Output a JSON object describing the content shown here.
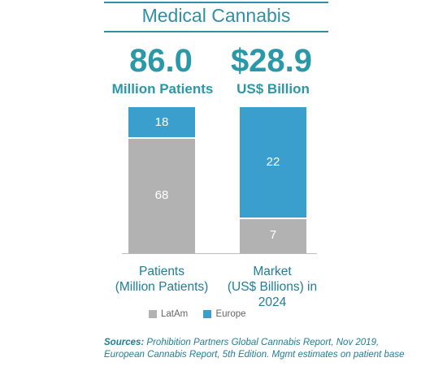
{
  "title": "Medical Cannabis",
  "stats": [
    {
      "value": "86.0",
      "unit": "Million Patients"
    },
    {
      "value": "$28.9",
      "unit": "US$ Billion"
    }
  ],
  "chart_data": {
    "type": "bar",
    "stacked": true,
    "categories": [
      "Patients (Million Patients)",
      "Market (US$ Billions) in 2024"
    ],
    "category_lines": [
      [
        "Patients",
        "(Million Patients)"
      ],
      [
        "Market",
        "(US$ Billions) in",
        "2024"
      ]
    ],
    "series": [
      {
        "name": "LatAm",
        "color": "#b2b2b2",
        "values": [
          68,
          7
        ]
      },
      {
        "name": "Europe",
        "color": "#3a9fcc",
        "values": [
          18,
          22
        ]
      }
    ],
    "legend_position": "bottom",
    "grid": false
  },
  "sources": {
    "label": "Sources:",
    "text": "Prohibition Partners Global Cannabis Report, Nov 2019, European Cannabis Report, 5th Edition. Mgmt estimates on patient base"
  }
}
